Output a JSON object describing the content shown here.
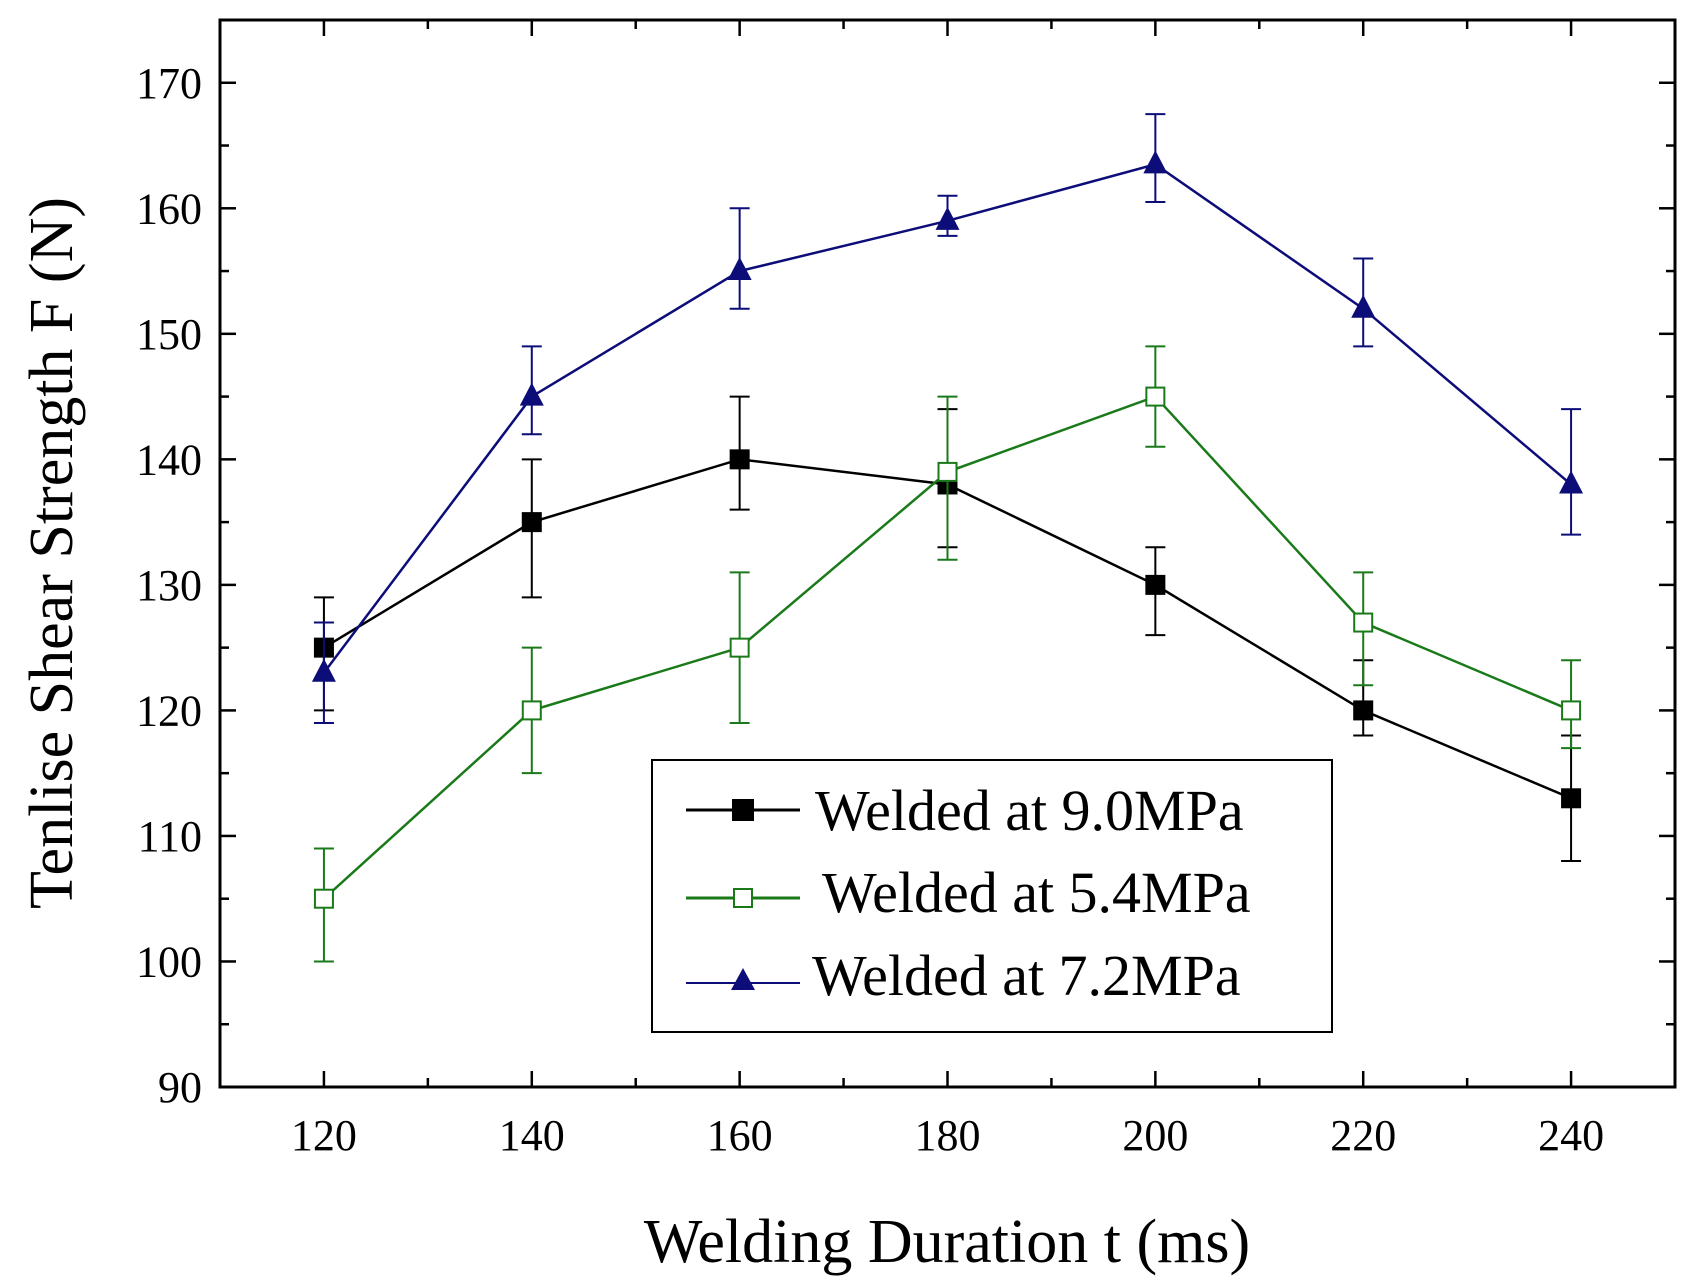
{
  "chart_data": {
    "type": "line",
    "xlabel": "Welding Duration t (ms)",
    "ylabel": "Tenlise Shear Strength F (N)",
    "xlim": [
      110,
      250
    ],
    "ylim": [
      90,
      175
    ],
    "xticks": [
      120,
      140,
      160,
      180,
      200,
      220,
      240
    ],
    "yticks": [
      90,
      100,
      110,
      120,
      130,
      140,
      150,
      160,
      170
    ],
    "x": [
      120,
      140,
      160,
      180,
      200,
      220,
      240
    ],
    "legend_position": "bottom-right",
    "series": [
      {
        "name": "Welded at 9.0MPa",
        "color": "#000000",
        "marker": "filled-square",
        "values": [
          125,
          135,
          140,
          138,
          130,
          120,
          113
        ],
        "err_low": [
          120,
          129,
          136,
          133,
          126,
          118,
          108
        ],
        "err_high": [
          129,
          140,
          145,
          144,
          133,
          124,
          118
        ]
      },
      {
        "name": "Welded at 5.4MPa",
        "color": "#1a7a1a",
        "marker": "open-square",
        "values": [
          105,
          120,
          125,
          139,
          145,
          127,
          120
        ],
        "err_low": [
          100,
          115,
          119,
          132,
          141,
          122,
          117
        ],
        "err_high": [
          109,
          125,
          131,
          145,
          149,
          131,
          124
        ]
      },
      {
        "name": "Welded at 7.2MPa",
        "color": "#0d0d7a",
        "marker": "filled-triangle",
        "values": [
          123,
          145,
          155,
          159,
          163.5,
          152,
          138
        ],
        "err_low": [
          119,
          142,
          152,
          157.8,
          160.5,
          149,
          134
        ],
        "err_high": [
          127,
          149,
          160,
          161,
          167.5,
          156,
          144
        ]
      }
    ]
  }
}
